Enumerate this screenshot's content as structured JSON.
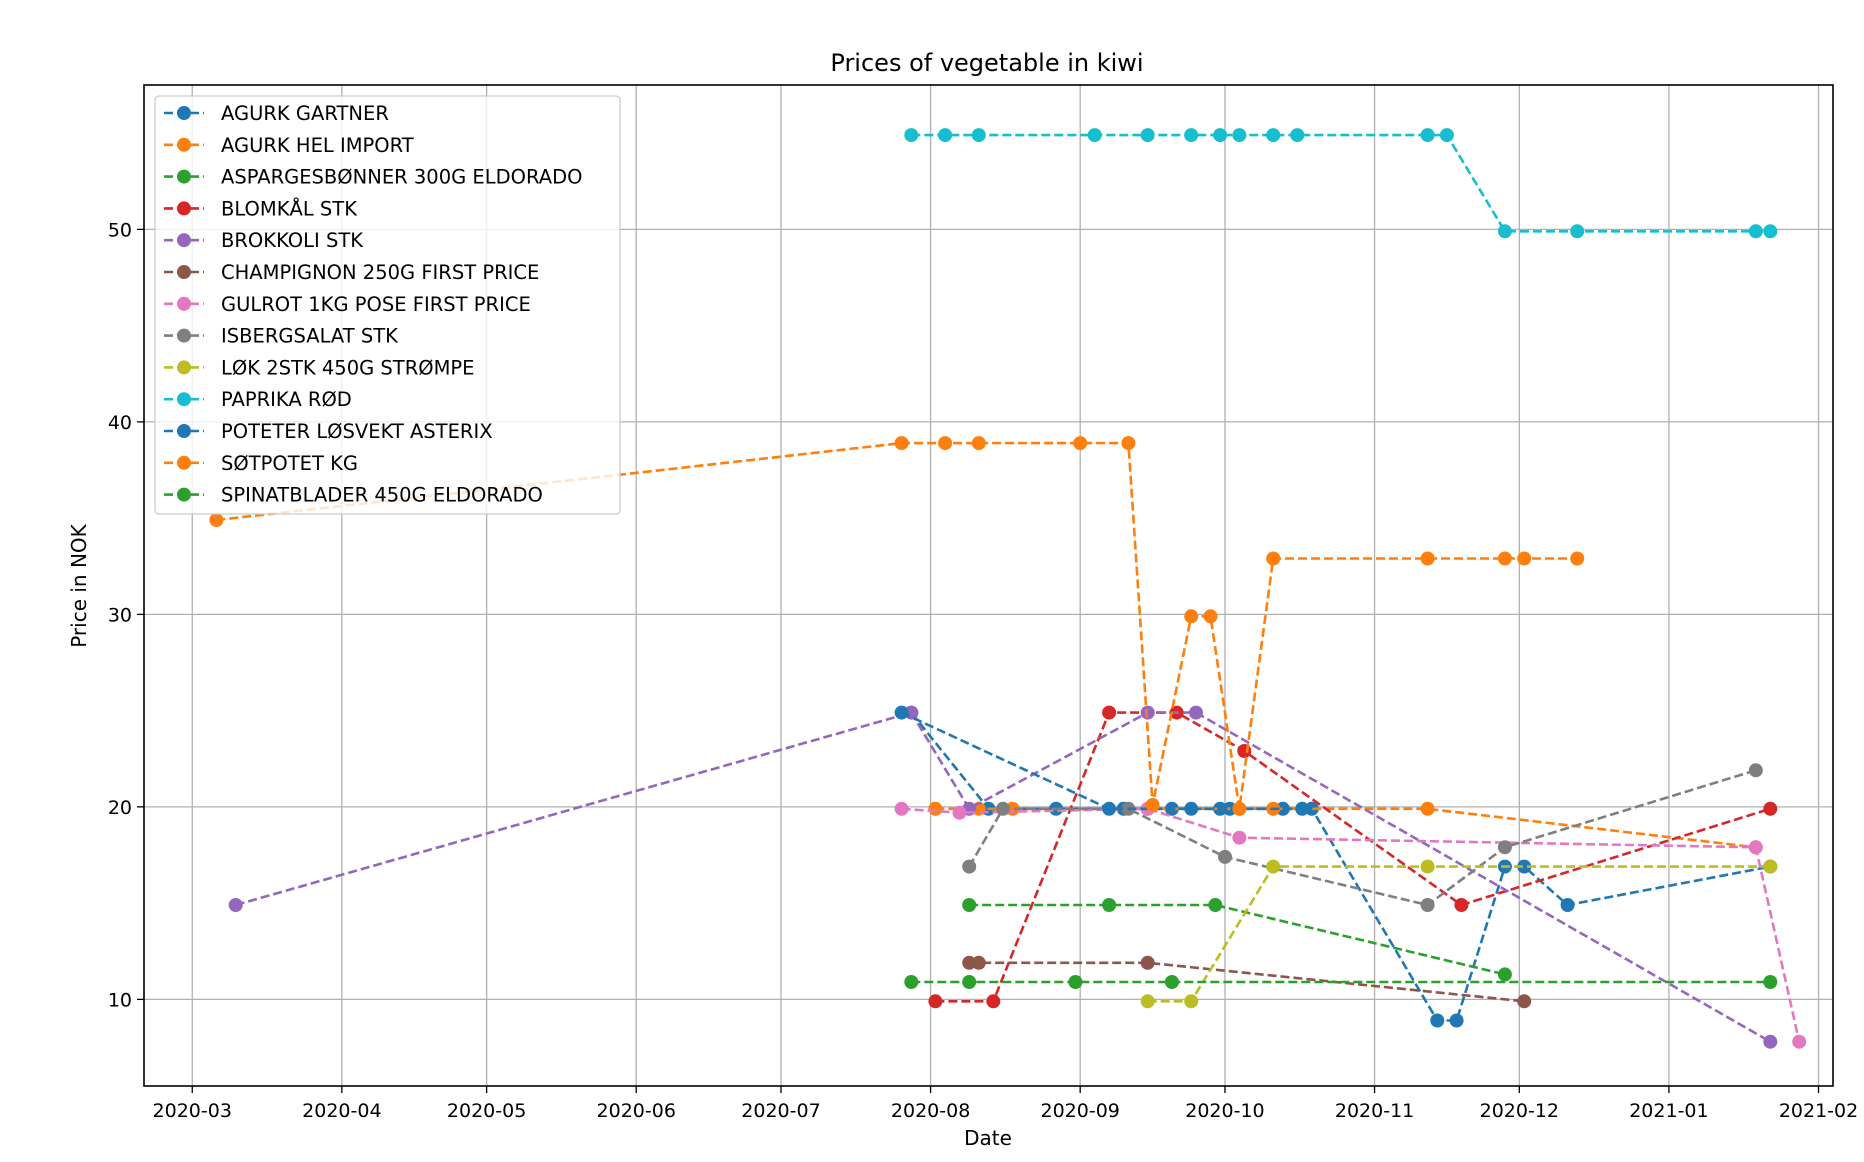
{
  "chart_data": {
    "type": "line",
    "title": "Prices of vegetable in kiwi",
    "xlabel": "Date",
    "ylabel": "Price in NOK",
    "x_ticks": [
      "2020-03-01",
      "2020-04-01",
      "2020-05-01",
      "2020-06-01",
      "2020-07-01",
      "2020-08-01",
      "2020-09-01",
      "2020-10-01",
      "2020-11-01",
      "2020-12-01",
      "2021-01-01",
      "2021-02-01"
    ],
    "x_tick_labels": [
      "2020-03",
      "2020-04",
      "2020-05",
      "2020-06",
      "2020-07",
      "2020-08",
      "2020-09",
      "2020-10",
      "2020-11",
      "2020-12",
      "2021-01",
      "2021-02"
    ],
    "y_ticks": [
      10,
      20,
      30,
      40,
      50
    ],
    "xlim": [
      "2020-02-20",
      "2021-02-04"
    ],
    "ylim": [
      5.5,
      57.5
    ],
    "grid": true,
    "legend_position": "upper-left",
    "line_style": "dashed",
    "marker": "circle",
    "series": [
      {
        "name": "AGURK GARTNER",
        "color": "#1f77b4",
        "points": [
          [
            "2020-07-28",
            24.9
          ],
          [
            "2020-08-13",
            19.9
          ],
          [
            "2020-08-27",
            19.9
          ],
          [
            "2020-09-10",
            19.9
          ],
          [
            "2020-09-20",
            19.9
          ],
          [
            "2020-09-30",
            19.9
          ],
          [
            "2020-10-02",
            19.9
          ],
          [
            "2020-10-13",
            19.9
          ],
          [
            "2020-10-19",
            19.9
          ],
          [
            "2020-11-14",
            8.9
          ],
          [
            "2020-11-18",
            8.9
          ],
          [
            "2020-11-28",
            16.9
          ],
          [
            "2020-12-02",
            16.9
          ],
          [
            "2020-12-11",
            14.9
          ],
          [
            "2021-01-22",
            16.9
          ]
        ]
      },
      {
        "name": "AGURK HEL IMPORT",
        "color": "#ff7f0e",
        "points": [
          [
            "2020-08-02",
            19.9
          ],
          [
            "2020-08-11",
            19.9
          ],
          [
            "2020-08-18",
            19.9
          ],
          [
            "2020-09-15",
            19.9
          ],
          [
            "2020-10-04",
            19.9
          ],
          [
            "2020-10-11",
            19.9
          ],
          [
            "2020-11-12",
            19.9
          ],
          [
            "2021-01-19",
            17.9
          ]
        ]
      },
      {
        "name": "ASPARGESBØNNER 300G ELDORADO",
        "color": "#2ca02c",
        "points": [
          [
            "2020-08-09",
            14.9
          ],
          [
            "2020-09-07",
            14.9
          ],
          [
            "2020-09-29",
            14.9
          ],
          [
            "2020-11-28",
            11.3
          ]
        ]
      },
      {
        "name": "BLOMKÅL STK",
        "color": "#d62728",
        "points": [
          [
            "2020-08-02",
            9.9
          ],
          [
            "2020-08-14",
            9.9
          ],
          [
            "2020-09-07",
            24.9
          ],
          [
            "2020-09-21",
            24.9
          ],
          [
            "2020-10-05",
            22.9
          ],
          [
            "2020-11-19",
            14.9
          ],
          [
            "2021-01-22",
            19.9
          ]
        ]
      },
      {
        "name": "BROKKOLI STK",
        "color": "#9467bd",
        "points": [
          [
            "2020-03-10",
            14.9
          ],
          [
            "2020-07-28",
            24.9
          ],
          [
            "2020-08-09",
            19.9
          ],
          [
            "2020-09-15",
            24.9
          ],
          [
            "2020-09-25",
            24.9
          ],
          [
            "2021-01-22",
            7.8
          ]
        ]
      },
      {
        "name": "CHAMPIGNON 250G FIRST PRICE",
        "color": "#8c564b",
        "points": [
          [
            "2020-08-09",
            11.9
          ],
          [
            "2020-08-11",
            11.9
          ],
          [
            "2020-09-15",
            11.9
          ],
          [
            "2020-12-02",
            9.9
          ]
        ]
      },
      {
        "name": "GULROT 1KG POSE FIRST PRICE",
        "color": "#e377c2",
        "points": [
          [
            "2020-07-26",
            19.9
          ],
          [
            "2020-08-07",
            19.7
          ],
          [
            "2020-09-15",
            19.9
          ],
          [
            "2020-10-04",
            18.4
          ],
          [
            "2021-01-19",
            17.9
          ],
          [
            "2021-01-28",
            7.8
          ]
        ]
      },
      {
        "name": "ISBERGSALAT STK",
        "color": "#7f7f7f",
        "points": [
          [
            "2020-08-09",
            16.9
          ],
          [
            "2020-08-16",
            19.9
          ],
          [
            "2020-09-11",
            19.9
          ],
          [
            "2020-10-01",
            17.4
          ],
          [
            "2020-11-12",
            14.9
          ],
          [
            "2020-11-28",
            17.9
          ],
          [
            "2021-01-19",
            21.9
          ]
        ]
      },
      {
        "name": "LØK 2STK 450G STRØMPE",
        "color": "#bcbd22",
        "points": [
          [
            "2020-09-15",
            9.9
          ],
          [
            "2020-09-24",
            9.9
          ],
          [
            "2020-10-11",
            16.9
          ],
          [
            "2020-11-12",
            16.9
          ],
          [
            "2021-01-22",
            16.9
          ]
        ]
      },
      {
        "name": "PAPRIKA RØD",
        "color": "#17becf",
        "points": [
          [
            "2020-07-28",
            54.9
          ],
          [
            "2020-08-04",
            54.9
          ],
          [
            "2020-08-11",
            54.9
          ],
          [
            "2020-09-04",
            54.9
          ],
          [
            "2020-09-15",
            54.9
          ],
          [
            "2020-09-24",
            54.9
          ],
          [
            "2020-09-30",
            54.9
          ],
          [
            "2020-10-04",
            54.9
          ],
          [
            "2020-10-11",
            54.9
          ],
          [
            "2020-10-16",
            54.9
          ],
          [
            "2020-11-12",
            54.9
          ],
          [
            "2020-11-16",
            54.9
          ],
          [
            "2020-11-28",
            49.9
          ],
          [
            "2020-12-13",
            49.9
          ],
          [
            "2021-01-19",
            49.9
          ],
          [
            "2021-01-22",
            49.9
          ]
        ]
      },
      {
        "name": "POTETER LØSVEKT ASTERIX",
        "color": "#1f77b4",
        "points": [
          [
            "2020-07-26",
            24.9
          ],
          [
            "2020-09-07",
            19.9
          ],
          [
            "2020-09-24",
            19.9
          ],
          [
            "2020-10-17",
            19.9
          ]
        ]
      },
      {
        "name": "SØTPOTET KG",
        "color": "#ff7f0e",
        "points": [
          [
            "2020-03-06",
            34.9
          ],
          [
            "2020-07-26",
            38.9
          ],
          [
            "2020-08-04",
            38.9
          ],
          [
            "2020-08-11",
            38.9
          ],
          [
            "2020-09-01",
            38.9
          ],
          [
            "2020-09-11",
            38.9
          ],
          [
            "2020-09-16",
            20.1
          ],
          [
            "2020-09-24",
            29.9
          ],
          [
            "2020-09-28",
            29.9
          ],
          [
            "2020-10-04",
            19.9
          ],
          [
            "2020-10-11",
            32.9
          ],
          [
            "2020-11-12",
            32.9
          ],
          [
            "2020-11-28",
            32.9
          ],
          [
            "2020-12-02",
            32.9
          ],
          [
            "2020-12-13",
            32.9
          ]
        ]
      },
      {
        "name": "SPINATBLADER 450G ELDORADO",
        "color": "#2ca02c",
        "points": [
          [
            "2020-07-28",
            10.9
          ],
          [
            "2020-08-09",
            10.9
          ],
          [
            "2020-08-31",
            10.9
          ],
          [
            "2020-09-20",
            10.9
          ],
          [
            "2021-01-22",
            10.9
          ]
        ]
      }
    ]
  }
}
